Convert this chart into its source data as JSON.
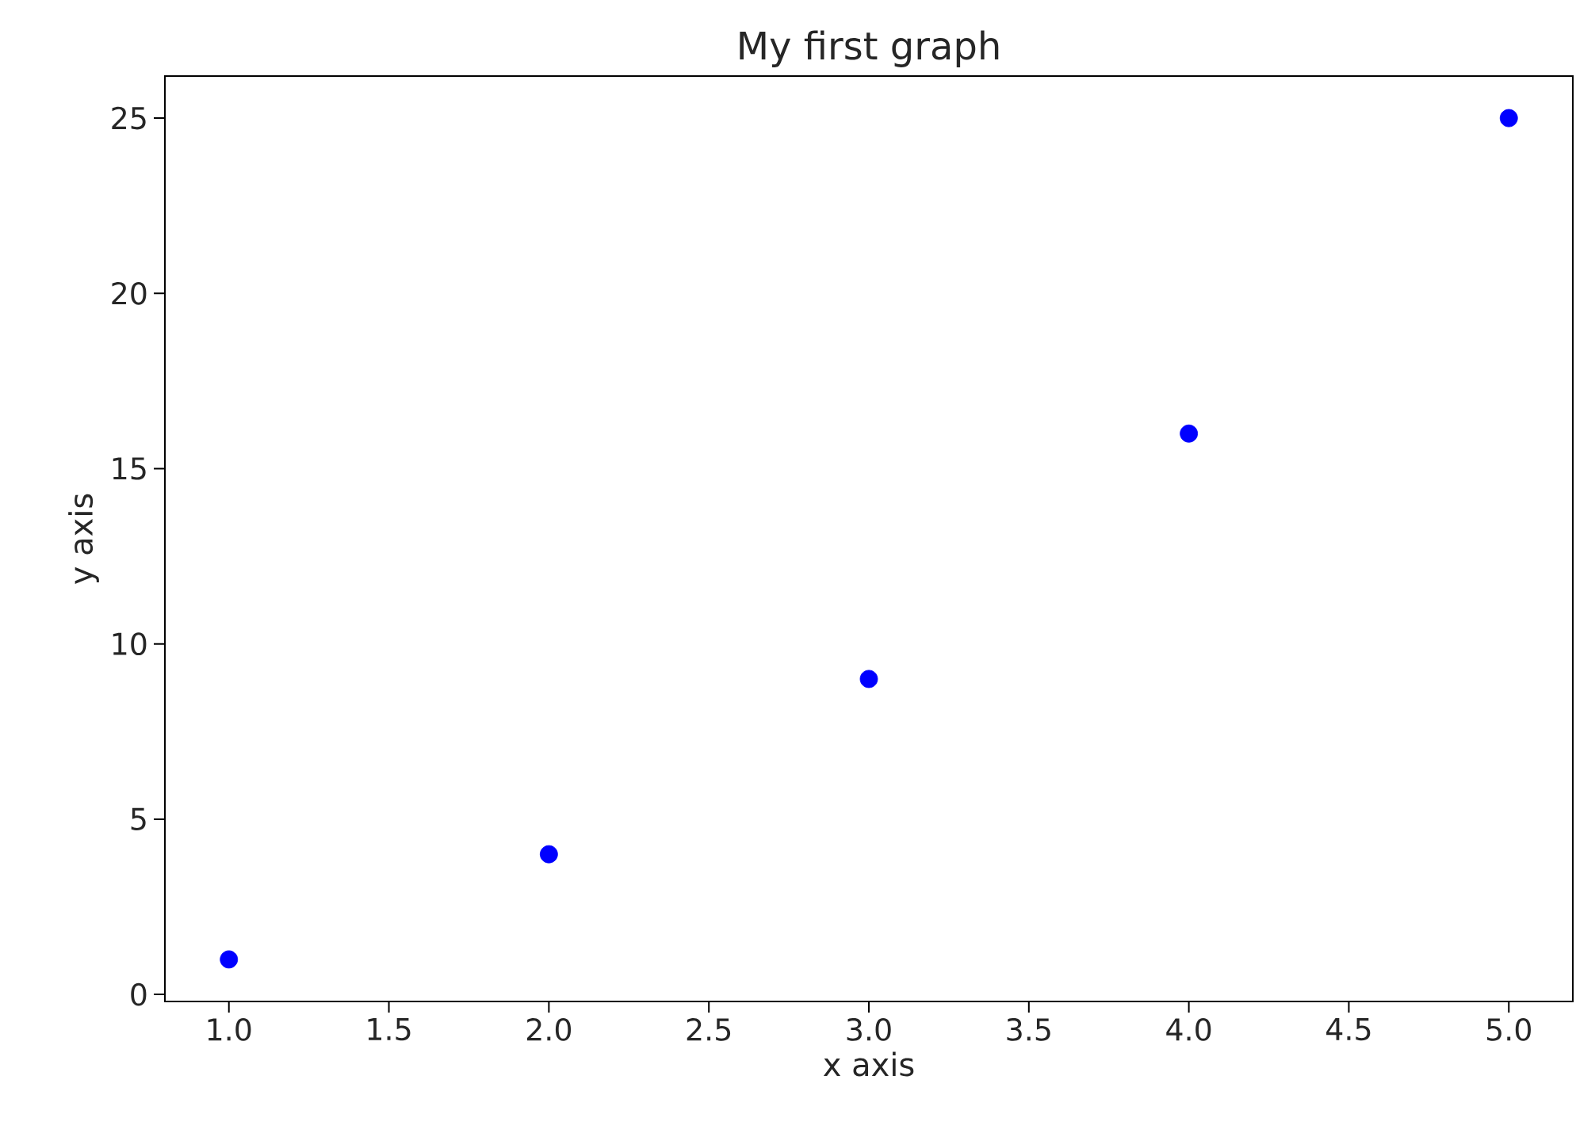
{
  "chart_data": {
    "type": "scatter",
    "title": "My first graph",
    "xlabel": "x axis",
    "ylabel": "y axis",
    "x": [
      1,
      2,
      3,
      4,
      5
    ],
    "series": [
      {
        "color": "#0000ff",
        "values": [
          1,
          4,
          9,
          16,
          25
        ]
      }
    ],
    "xlim": [
      0.8,
      5.2
    ],
    "ylim": [
      -0.2,
      26.2
    ],
    "xticks": [
      {
        "value": 1,
        "label": "1.0"
      },
      {
        "value": 1.5,
        "label": "1.5"
      },
      {
        "value": 2,
        "label": "2.0"
      },
      {
        "value": 2.5,
        "label": "2.5"
      },
      {
        "value": 3,
        "label": "3.0"
      },
      {
        "value": 3.5,
        "label": "3.5"
      },
      {
        "value": 4,
        "label": "4.0"
      },
      {
        "value": 4.5,
        "label": "4.5"
      },
      {
        "value": 5,
        "label": "5.0"
      }
    ],
    "yticks": [
      0,
      5,
      10,
      15,
      20,
      25
    ],
    "marker": "circle",
    "grid": false
  }
}
